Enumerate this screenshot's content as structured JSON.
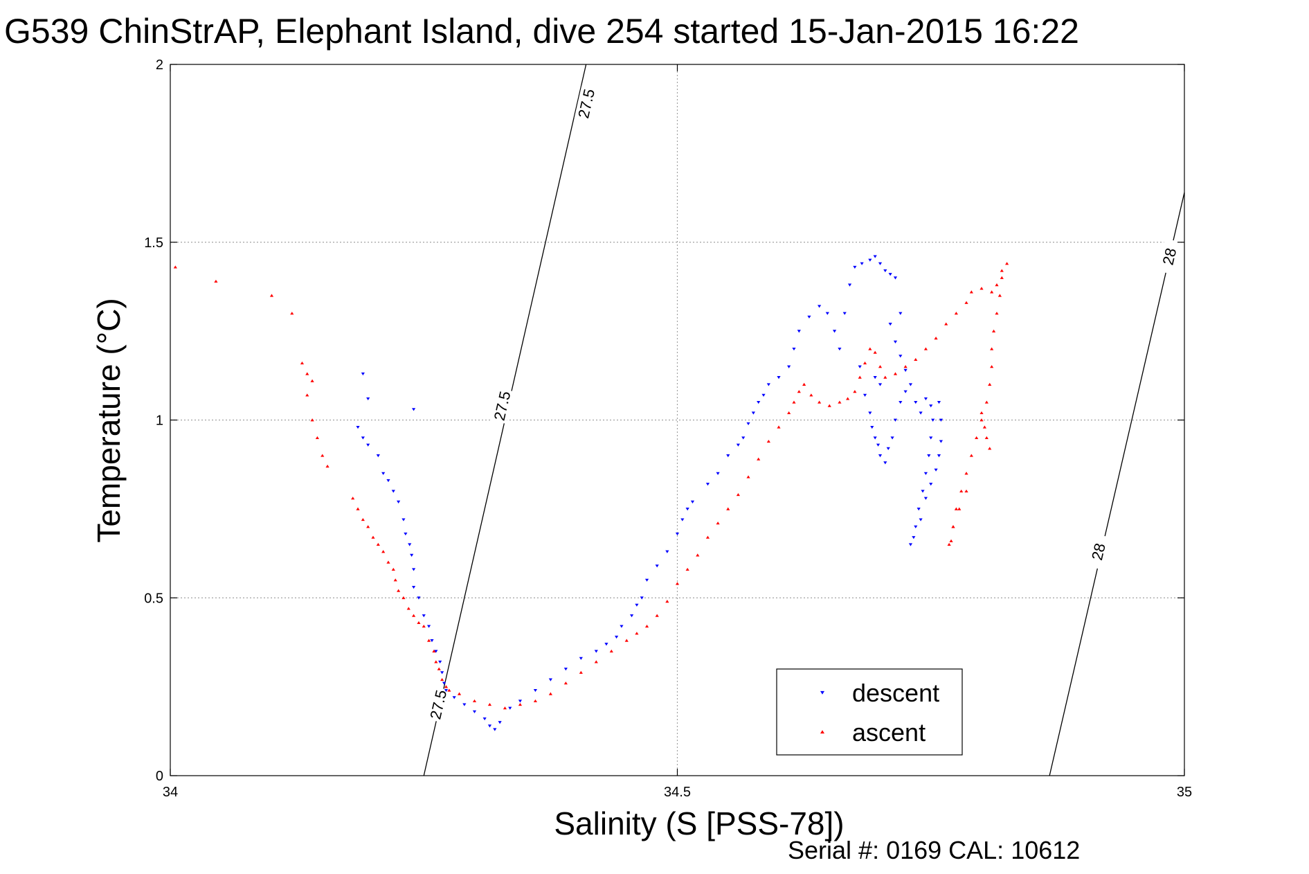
{
  "chart_data": {
    "type": "scatter",
    "title": "G539 ChinStrAP, Elephant Island, dive 254 started 15-Jan-2015 16:22",
    "xlabel": "Salinity (S [PSS-78])",
    "ylabel": "Temperature (°C)",
    "xlim": [
      34,
      35
    ],
    "ylim": [
      0,
      2
    ],
    "x_ticks": [
      34,
      34.5,
      35
    ],
    "x_tick_labels": [
      "34",
      "34.5",
      "35"
    ],
    "y_ticks": [
      0,
      0.5,
      1,
      1.5,
      2
    ],
    "y_tick_labels": [
      "0",
      "0.5",
      "1",
      "1.5",
      "2"
    ],
    "grid": true,
    "legend_position": "bottom-right",
    "footer": "Serial #: 0169 CAL: 10612",
    "colors": {
      "descent": "#0000ff",
      "ascent": "#ff0000",
      "contour": "#000000"
    },
    "density_contours": [
      {
        "label": "27.5",
        "points": [
          [
            34.25,
            0
          ],
          [
            34.41,
            2
          ]
        ],
        "label_positions": [
          [
            34.41,
            1.89
          ],
          [
            34.327,
            1.04
          ],
          [
            34.264,
            0.2
          ]
        ]
      },
      {
        "label": "28",
        "points": [
          [
            34.867,
            0
          ],
          [
            35,
            1.64
          ]
        ],
        "label_positions": [
          [
            34.985,
            1.46
          ],
          [
            34.915,
            0.63
          ]
        ]
      }
    ],
    "series": [
      {
        "name": "descent",
        "marker": "triangle-down",
        "color": "#0000ff",
        "points": [
          [
            34.19,
            1.13
          ],
          [
            34.195,
            1.06
          ],
          [
            34.24,
            1.03
          ],
          [
            34.185,
            0.98
          ],
          [
            34.19,
            0.95
          ],
          [
            34.195,
            0.93
          ],
          [
            34.205,
            0.9
          ],
          [
            34.21,
            0.85
          ],
          [
            34.215,
            0.83
          ],
          [
            34.22,
            0.8
          ],
          [
            34.225,
            0.77
          ],
          [
            34.23,
            0.72
          ],
          [
            34.232,
            0.68
          ],
          [
            34.236,
            0.65
          ],
          [
            34.238,
            0.62
          ],
          [
            34.24,
            0.58
          ],
          [
            34.24,
            0.53
          ],
          [
            34.245,
            0.5
          ],
          [
            34.25,
            0.45
          ],
          [
            34.255,
            0.42
          ],
          [
            34.258,
            0.38
          ],
          [
            34.262,
            0.35
          ],
          [
            34.266,
            0.32
          ],
          [
            34.268,
            0.29
          ],
          [
            34.27,
            0.26
          ],
          [
            34.272,
            0.24
          ],
          [
            34.28,
            0.22
          ],
          [
            34.29,
            0.2
          ],
          [
            34.3,
            0.18
          ],
          [
            34.31,
            0.16
          ],
          [
            34.315,
            0.14
          ],
          [
            34.32,
            0.13
          ],
          [
            34.325,
            0.15
          ],
          [
            34.335,
            0.19
          ],
          [
            34.345,
            0.21
          ],
          [
            34.36,
            0.24
          ],
          [
            34.375,
            0.27
          ],
          [
            34.39,
            0.3
          ],
          [
            34.405,
            0.33
          ],
          [
            34.42,
            0.35
          ],
          [
            34.43,
            0.37
          ],
          [
            34.44,
            0.39
          ],
          [
            34.445,
            0.42
          ],
          [
            34.455,
            0.45
          ],
          [
            34.46,
            0.48
          ],
          [
            34.465,
            0.5
          ],
          [
            34.47,
            0.55
          ],
          [
            34.48,
            0.59
          ],
          [
            34.49,
            0.63
          ],
          [
            34.5,
            0.68
          ],
          [
            34.505,
            0.72
          ],
          [
            34.51,
            0.75
          ],
          [
            34.515,
            0.77
          ],
          [
            34.53,
            0.82
          ],
          [
            34.54,
            0.85
          ],
          [
            34.55,
            0.9
          ],
          [
            34.56,
            0.93
          ],
          [
            34.565,
            0.95
          ],
          [
            34.57,
            0.99
          ],
          [
            34.575,
            1.02
          ],
          [
            34.58,
            1.05
          ],
          [
            34.585,
            1.07
          ],
          [
            34.59,
            1.1
          ],
          [
            34.6,
            1.12
          ],
          [
            34.61,
            1.15
          ],
          [
            34.615,
            1.2
          ],
          [
            34.62,
            1.25
          ],
          [
            34.63,
            1.29
          ],
          [
            34.64,
            1.32
          ],
          [
            34.648,
            1.3
          ],
          [
            34.655,
            1.25
          ],
          [
            34.66,
            1.2
          ],
          [
            34.665,
            1.3
          ],
          [
            34.67,
            1.38
          ],
          [
            34.675,
            1.43
          ],
          [
            34.682,
            1.44
          ],
          [
            34.69,
            1.45
          ],
          [
            34.695,
            1.46
          ],
          [
            34.7,
            1.44
          ],
          [
            34.705,
            1.42
          ],
          [
            34.71,
            1.41
          ],
          [
            34.715,
            1.4
          ],
          [
            34.68,
            1.15
          ],
          [
            34.685,
            1.07
          ],
          [
            34.69,
            1.02
          ],
          [
            34.692,
            0.98
          ],
          [
            34.695,
            0.95
          ],
          [
            34.698,
            0.93
          ],
          [
            34.7,
            0.9
          ],
          [
            34.705,
            0.88
          ],
          [
            34.708,
            0.92
          ],
          [
            34.712,
            0.95
          ],
          [
            34.715,
            1.0
          ],
          [
            34.72,
            1.05
          ],
          [
            34.725,
            1.08
          ],
          [
            34.73,
            1.1
          ],
          [
            34.735,
            1.05
          ],
          [
            34.74,
            1.02
          ],
          [
            34.745,
            1.06
          ],
          [
            34.75,
            1.04
          ],
          [
            34.752,
            1.0
          ],
          [
            34.75,
            0.95
          ],
          [
            34.748,
            0.9
          ],
          [
            34.745,
            0.85
          ],
          [
            34.742,
            0.8
          ],
          [
            34.738,
            0.75
          ],
          [
            34.735,
            0.7
          ],
          [
            34.733,
            0.67
          ],
          [
            34.73,
            0.65
          ],
          [
            34.74,
            0.72
          ],
          [
            34.745,
            0.78
          ],
          [
            34.75,
            0.82
          ],
          [
            34.755,
            0.86
          ],
          [
            34.758,
            0.9
          ],
          [
            34.76,
            0.94
          ],
          [
            34.76,
            1.0
          ],
          [
            34.758,
            1.05
          ],
          [
            34.72,
            1.3
          ],
          [
            34.71,
            1.27
          ],
          [
            34.715,
            1.22
          ],
          [
            34.72,
            1.18
          ],
          [
            34.725,
            1.14
          ],
          [
            34.7,
            1.1
          ],
          [
            34.695,
            1.12
          ]
        ]
      },
      {
        "name": "ascent",
        "marker": "triangle-up",
        "color": "#ff0000",
        "points": [
          [
            34.005,
            1.43
          ],
          [
            34.045,
            1.39
          ],
          [
            34.1,
            1.35
          ],
          [
            34.12,
            1.3
          ],
          [
            34.13,
            1.16
          ],
          [
            34.135,
            1.13
          ],
          [
            34.14,
            1.11
          ],
          [
            34.135,
            1.07
          ],
          [
            34.14,
            1.0
          ],
          [
            34.145,
            0.95
          ],
          [
            34.15,
            0.9
          ],
          [
            34.155,
            0.87
          ],
          [
            34.18,
            0.78
          ],
          [
            34.185,
            0.75
          ],
          [
            34.19,
            0.72
          ],
          [
            34.195,
            0.7
          ],
          [
            34.2,
            0.67
          ],
          [
            34.205,
            0.65
          ],
          [
            34.21,
            0.63
          ],
          [
            34.215,
            0.6
          ],
          [
            34.22,
            0.58
          ],
          [
            34.222,
            0.55
          ],
          [
            34.225,
            0.52
          ],
          [
            34.23,
            0.5
          ],
          [
            34.235,
            0.47
          ],
          [
            34.24,
            0.45
          ],
          [
            34.245,
            0.43
          ],
          [
            34.25,
            0.42
          ],
          [
            34.255,
            0.38
          ],
          [
            34.26,
            0.35
          ],
          [
            34.262,
            0.32
          ],
          [
            34.265,
            0.3
          ],
          [
            34.268,
            0.27
          ],
          [
            34.272,
            0.25
          ],
          [
            34.275,
            0.24
          ],
          [
            34.285,
            0.23
          ],
          [
            34.3,
            0.21
          ],
          [
            34.315,
            0.2
          ],
          [
            34.33,
            0.19
          ],
          [
            34.345,
            0.2
          ],
          [
            34.36,
            0.21
          ],
          [
            34.375,
            0.23
          ],
          [
            34.39,
            0.26
          ],
          [
            34.405,
            0.29
          ],
          [
            34.42,
            0.32
          ],
          [
            34.435,
            0.35
          ],
          [
            34.45,
            0.38
          ],
          [
            34.46,
            0.4
          ],
          [
            34.47,
            0.42
          ],
          [
            34.48,
            0.45
          ],
          [
            34.49,
            0.49
          ],
          [
            34.5,
            0.54
          ],
          [
            34.51,
            0.58
          ],
          [
            34.52,
            0.62
          ],
          [
            34.53,
            0.67
          ],
          [
            34.54,
            0.71
          ],
          [
            34.55,
            0.75
          ],
          [
            34.56,
            0.79
          ],
          [
            34.57,
            0.84
          ],
          [
            34.58,
            0.89
          ],
          [
            34.59,
            0.94
          ],
          [
            34.6,
            0.98
          ],
          [
            34.61,
            1.02
          ],
          [
            34.615,
            1.05
          ],
          [
            34.62,
            1.08
          ],
          [
            34.625,
            1.1
          ],
          [
            34.632,
            1.07
          ],
          [
            34.64,
            1.05
          ],
          [
            34.65,
            1.04
          ],
          [
            34.66,
            1.05
          ],
          [
            34.668,
            1.06
          ],
          [
            34.675,
            1.08
          ],
          [
            34.68,
            1.12
          ],
          [
            34.685,
            1.16
          ],
          [
            34.69,
            1.2
          ],
          [
            34.695,
            1.19
          ],
          [
            34.7,
            1.15
          ],
          [
            34.705,
            1.12
          ],
          [
            34.715,
            1.13
          ],
          [
            34.725,
            1.15
          ],
          [
            34.735,
            1.17
          ],
          [
            34.745,
            1.2
          ],
          [
            34.755,
            1.23
          ],
          [
            34.765,
            1.27
          ],
          [
            34.775,
            1.3
          ],
          [
            34.785,
            1.33
          ],
          [
            34.79,
            1.36
          ],
          [
            34.8,
            1.37
          ],
          [
            34.81,
            1.36
          ],
          [
            34.815,
            1.38
          ],
          [
            34.82,
            1.42
          ],
          [
            34.825,
            1.44
          ],
          [
            34.82,
            1.4
          ],
          [
            34.818,
            1.35
          ],
          [
            34.815,
            1.3
          ],
          [
            34.812,
            1.25
          ],
          [
            34.81,
            1.2
          ],
          [
            34.81,
            1.15
          ],
          [
            34.808,
            1.1
          ],
          [
            34.805,
            1.05
          ],
          [
            34.8,
            1.0
          ],
          [
            34.795,
            0.95
          ],
          [
            34.79,
            0.9
          ],
          [
            34.785,
            0.85
          ],
          [
            34.78,
            0.8
          ],
          [
            34.775,
            0.75
          ],
          [
            34.772,
            0.7
          ],
          [
            34.77,
            0.66
          ],
          [
            34.768,
            0.65
          ],
          [
            34.772,
            0.7
          ],
          [
            34.778,
            0.75
          ],
          [
            34.785,
            0.8
          ],
          [
            34.8,
            1.02
          ],
          [
            34.803,
            0.98
          ],
          [
            34.805,
            0.95
          ],
          [
            34.808,
            0.92
          ]
        ]
      }
    ]
  }
}
